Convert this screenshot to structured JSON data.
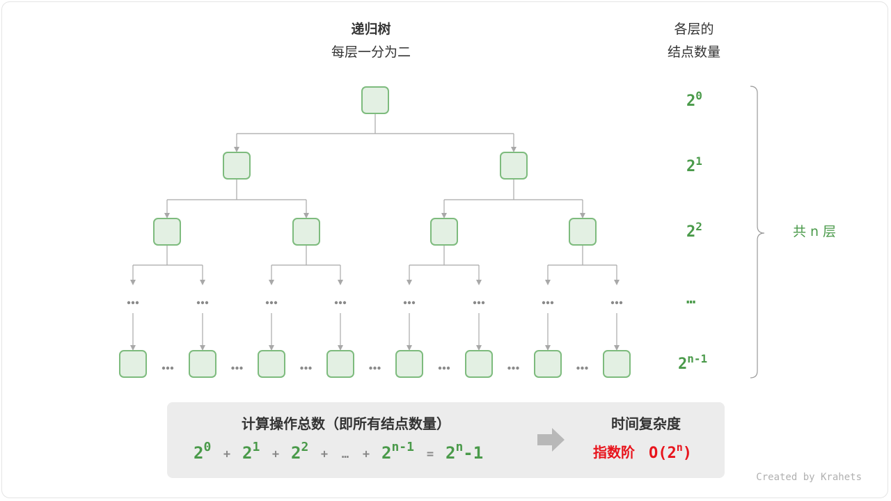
{
  "title": "递归树",
  "subtitle": "每层一分为二",
  "right_header": [
    "各层的",
    "结点数量"
  ],
  "levels": [
    {
      "base": "2",
      "exp": "0"
    },
    {
      "base": "2",
      "exp": "1"
    },
    {
      "base": "2",
      "exp": "2"
    },
    {
      "base": "…",
      "exp": ""
    },
    {
      "base": "2",
      "exp": "n-1"
    }
  ],
  "total_layers": "共 n 层",
  "ellipsis": "…",
  "summary": {
    "heading": "计算操作总数（即所有结点数量）",
    "formula": [
      {
        "text": "2",
        "exp": "0"
      },
      {
        "op": "+"
      },
      {
        "text": "2",
        "exp": "1"
      },
      {
        "op": "+"
      },
      {
        "text": "2",
        "exp": "2"
      },
      {
        "op": "+"
      },
      {
        "op": "…"
      },
      {
        "op": "+"
      },
      {
        "text": "2",
        "exp": "n-1"
      },
      {
        "op": "="
      },
      {
        "text": "2",
        "exp": "n",
        "suffix": "-1"
      }
    ],
    "result_heading": "时间复杂度",
    "result_label": "指数阶",
    "result_big_o_prefix": "O(2",
    "result_big_o_exp": "n",
    "result_big_o_suffix": ")"
  },
  "credit": "Created by Krahets",
  "colors": {
    "node_fill": "#e3f0e3",
    "node_stroke": "#7dbb7d",
    "accent_green": "#4a9a4a",
    "accent_red": "#e8141c",
    "line": "#a8a8a8",
    "panel": "#ececec"
  }
}
